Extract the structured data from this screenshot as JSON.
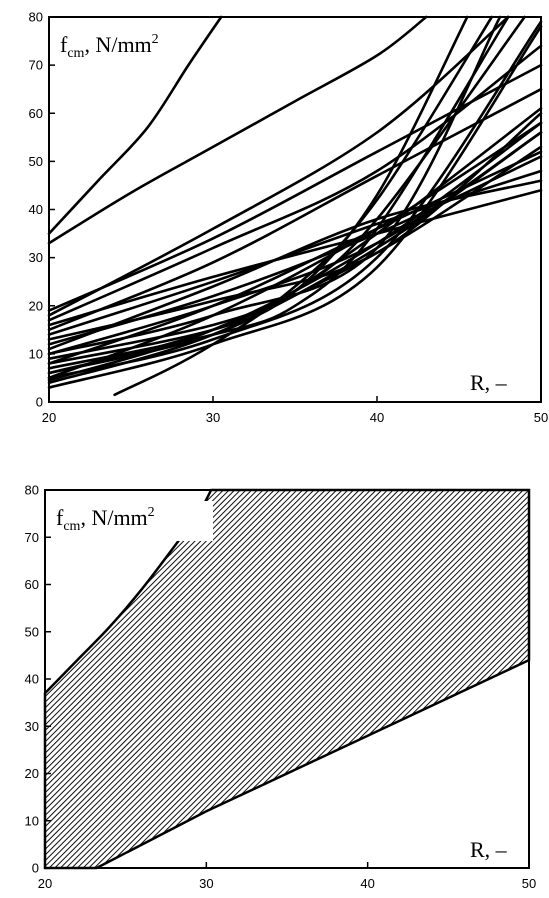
{
  "chart_data": [
    {
      "type": "line",
      "xlim": [
        20,
        50
      ],
      "ylim": [
        0,
        80
      ],
      "x_ticks": [
        "20",
        "30",
        "40",
        "50"
      ],
      "y_ticks": [
        "0",
        "10",
        "20",
        "30",
        "40",
        "50",
        "60",
        "70",
        "80"
      ],
      "ylabel": {
        "main": "f",
        "sub": "cm",
        "unit": ", N/mm",
        "sup": "2"
      },
      "xlabel": "R, –",
      "grid": false,
      "series": [
        {
          "x": [
            20,
            23,
            26,
            28.5,
            30.5
          ],
          "y": [
            35,
            46,
            57,
            70,
            80
          ]
        },
        {
          "x": [
            20,
            25,
            30,
            35,
            40,
            43
          ],
          "y": [
            33,
            43.5,
            53,
            62.5,
            72,
            80
          ]
        },
        {
          "x": [
            20,
            30,
            40,
            48
          ],
          "y": [
            18,
            36,
            56,
            80
          ]
        },
        {
          "x": [
            20,
            30,
            40,
            50
          ],
          "y": [
            17,
            32,
            48,
            74
          ]
        },
        {
          "x": [
            20,
            30,
            40,
            50
          ],
          "y": [
            19,
            34,
            52,
            70
          ]
        },
        {
          "x": [
            20,
            30,
            40,
            50
          ],
          "y": [
            15,
            29,
            47,
            65
          ]
        },
        {
          "x": [
            24,
            30,
            40,
            50
          ],
          "y": [
            1.5,
            12,
            35,
            61
          ]
        },
        {
          "x": [
            20,
            30,
            40,
            50
          ],
          "y": [
            5,
            18,
            36,
            58
          ]
        },
        {
          "x": [
            20,
            30,
            40,
            50
          ],
          "y": [
            4,
            14,
            32,
            56
          ]
        },
        {
          "x": [
            20,
            30,
            40,
            50
          ],
          "y": [
            6,
            15,
            31,
            53
          ]
        },
        {
          "x": [
            20,
            30,
            40,
            50
          ],
          "y": [
            10,
            20,
            33,
            56
          ]
        },
        {
          "x": [
            20,
            30,
            40,
            50
          ],
          "y": [
            12,
            22,
            35,
            51
          ]
        },
        {
          "x": [
            20,
            30,
            40,
            50
          ],
          "y": [
            14,
            25,
            37,
            48
          ]
        },
        {
          "x": [
            20,
            30,
            40,
            50
          ],
          "y": [
            8,
            20,
            36,
            52
          ]
        },
        {
          "x": [
            20,
            30,
            40,
            50
          ],
          "y": [
            16,
            26,
            35,
            44
          ]
        },
        {
          "x": [
            20,
            30,
            40,
            50
          ],
          "y": [
            11,
            24,
            38,
            46
          ]
        },
        {
          "x": [
            20,
            30,
            35,
            40,
            45.5
          ],
          "y": [
            8,
            15,
            23,
            43,
            80
          ]
        },
        {
          "x": [
            20,
            30,
            35,
            40,
            47
          ],
          "y": [
            6,
            14,
            24,
            42,
            80
          ]
        },
        {
          "x": [
            20,
            30,
            35,
            40,
            48
          ],
          "y": [
            7,
            14,
            20,
            36,
            80
          ]
        },
        {
          "x": [
            20,
            30,
            35,
            40,
            49
          ],
          "y": [
            9,
            16,
            23,
            38,
            80
          ]
        },
        {
          "x": [
            20,
            30,
            40,
            50
          ],
          "y": [
            5,
            13,
            30,
            79
          ]
        },
        {
          "x": [
            20,
            30,
            40,
            50
          ],
          "y": [
            3,
            12,
            28,
            78
          ]
        },
        {
          "x": [
            20,
            30,
            40,
            47.5
          ],
          "y": [
            10,
            18,
            32,
            80
          ]
        },
        {
          "x": [
            20,
            30,
            40,
            50
          ],
          "y": [
            13,
            21,
            31,
            60
          ]
        },
        {
          "x": [
            20,
            30,
            40,
            50
          ],
          "y": [
            4.5,
            15,
            33,
            58
          ]
        }
      ]
    },
    {
      "type": "area",
      "xlim": [
        20,
        50
      ],
      "ylim": [
        0,
        80
      ],
      "x_ticks": [
        "20",
        "30",
        "40",
        "50"
      ],
      "y_ticks": [
        "0",
        "10",
        "20",
        "30",
        "40",
        "50",
        "60",
        "70",
        "80"
      ],
      "ylabel": {
        "main": "f",
        "sub": "cm",
        "unit": ", N/mm",
        "sup": "2"
      },
      "xlabel": "R, –",
      "grid": false,
      "upper_boundary": {
        "x": [
          20,
          22,
          24,
          26,
          28,
          29.5,
          30.3,
          50
        ],
        "y": [
          37,
          44,
          51,
          59,
          68,
          75,
          80,
          80
        ]
      },
      "lower_boundary": {
        "x": [
          20,
          23.2,
          30,
          40,
          50
        ],
        "y": [
          0,
          0,
          12,
          28,
          44
        ]
      }
    }
  ]
}
